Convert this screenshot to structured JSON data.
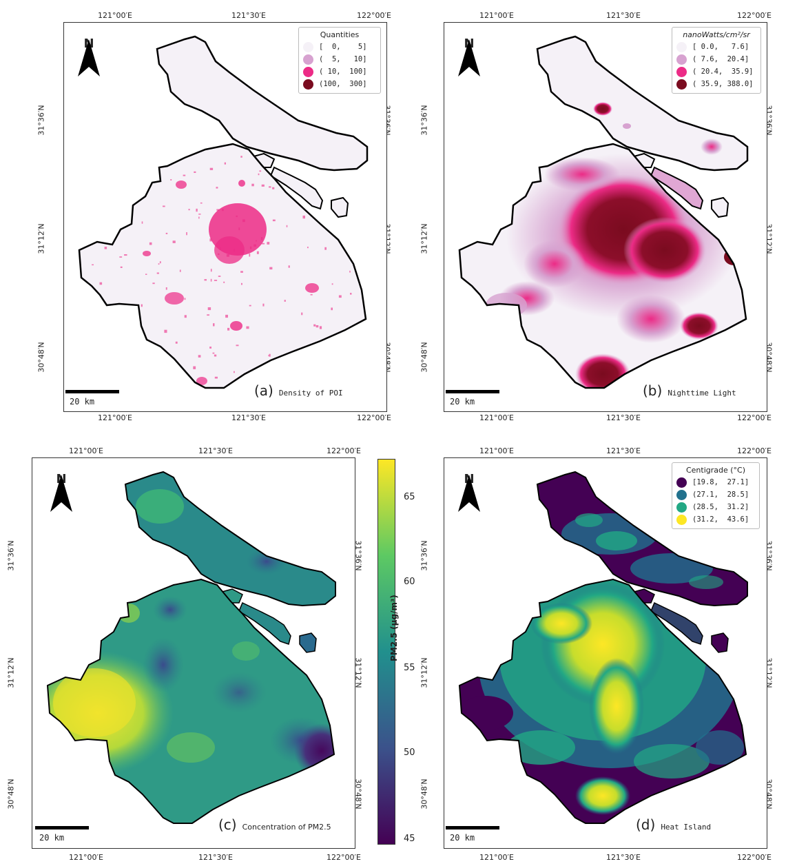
{
  "map_labels": {
    "lon_ticks": [
      "121°00′E",
      "121°30′E",
      "122°00′E"
    ],
    "lat_ticks": [
      "31°36′N",
      "31°12′N",
      "30°48′N"
    ],
    "north_label": "N",
    "scale_label": "20 km"
  },
  "panels": [
    {
      "letter": "(a)",
      "caption": "Density of POI",
      "legend_title": "Quantities",
      "legend_items": [
        {
          "label": "[  0,    5]",
          "color": "#f5f1f7"
        },
        {
          "label": "(  5,   10]",
          "color": "#d7a2d0"
        },
        {
          "label": "( 10,  100]",
          "color": "#ec2b86"
        },
        {
          "label": "(100,  300]",
          "color": "#7a0b1f"
        }
      ]
    },
    {
      "letter": "(b)",
      "caption": "Nighttime Light",
      "legend_title": "nanoWatts/cm²/sr",
      "legend_items": [
        {
          "label": "[ 0.0,   7.6]",
          "color": "#f5f1f7"
        },
        {
          "label": "( 7.6,  20.4]",
          "color": "#d7a2d0"
        },
        {
          "label": "( 20.4,  35.9]",
          "color": "#ec2b86"
        },
        {
          "label": "( 35.9, 388.0]",
          "color": "#7a0b1f"
        }
      ]
    },
    {
      "letter": "(c)",
      "caption": "Concentration of PM2.5",
      "colorbar_label": "PM2.5 (μg/m³)",
      "colorbar_ticks": [
        "65",
        "60",
        "55",
        "50",
        "45"
      ]
    },
    {
      "letter": "(d)",
      "caption": "Heat Island",
      "legend_title": "Centigrade (°C)",
      "legend_items": [
        {
          "label": "[19.8,  27.1]",
          "color": "#440154"
        },
        {
          "label": "(27.1,  28.5]",
          "color": "#21718d"
        },
        {
          "label": "(28.5,  31.2]",
          "color": "#22a884"
        },
        {
          "label": "(31.2,  43.6]",
          "color": "#fde725"
        }
      ]
    }
  ]
}
